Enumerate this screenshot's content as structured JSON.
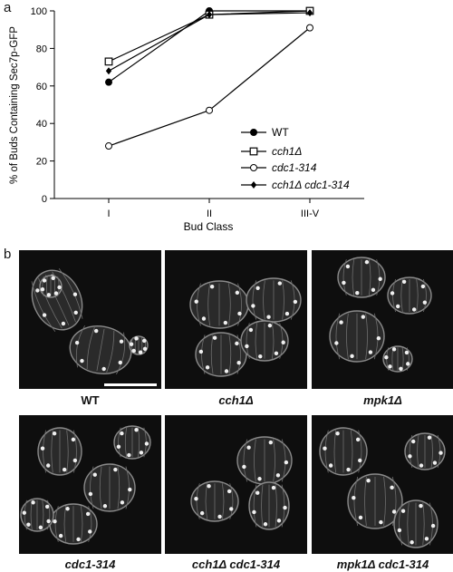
{
  "panel_a_label": "a",
  "panel_b_label": "b",
  "chart_data": {
    "type": "line",
    "categories": [
      "I",
      "II",
      "III-V"
    ],
    "xlabel": "Bud Class",
    "ylabel": "% of Buds Containing Sec7p-GFP",
    "ylim": [
      0,
      100
    ],
    "yticks": [
      "0",
      "20",
      "40",
      "60",
      "80",
      "100"
    ],
    "grid": false,
    "legend_position": "right",
    "series": [
      {
        "name": "WT",
        "marker": "filled-circle",
        "values": [
          62,
          100,
          100
        ]
      },
      {
        "name": "cch1Δ",
        "marker": "open-square",
        "values": [
          73,
          98,
          100
        ]
      },
      {
        "name": "cdc1-314",
        "marker": "open-circle",
        "values": [
          28,
          47,
          91
        ]
      },
      {
        "name": "cch1Δ cdc1-314",
        "marker": "filled-diamond",
        "values": [
          68,
          98,
          99
        ]
      }
    ]
  },
  "micrographs": [
    {
      "caption": "WT"
    },
    {
      "caption": "cch1Δ"
    },
    {
      "caption": "mpk1Δ"
    },
    {
      "caption": "cdc1-314"
    },
    {
      "caption": "cch1Δ cdc1-314"
    },
    {
      "caption": "mpk1Δ cdc1-314"
    }
  ]
}
